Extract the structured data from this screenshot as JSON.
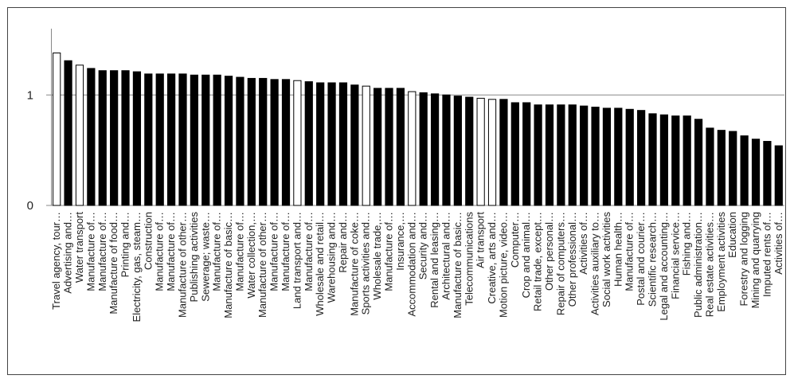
{
  "chart_data": {
    "type": "bar",
    "categories": [
      "Travel agency, tour…",
      "Advertising and…",
      "Water transport",
      "Manufacture of…",
      "Manufacture of…",
      "Manufacture of food…",
      "Printing and…",
      "Electricity, gas, steam…",
      "Construction",
      "Manufacture of…",
      "Manufacture of…",
      "Manufacture of other…",
      "Publishing activities",
      "Sewerage; waste…",
      "Manufacture of…",
      "Manufacture of basic…",
      "Manufacture of…",
      "Water collection,…",
      "Manufacture of other…",
      "Manufacture of…",
      "Manufacture of…",
      "Land transport and…",
      "Manufacture of…",
      "Wholesale and retail…",
      "Warehousing and…",
      "Repair and…",
      "Manufacture of coke…",
      "Sports activities and…",
      "Wholesale trade,…",
      "Manufacture of…",
      "Insurance,…",
      "Accommodation and…",
      "Security and…",
      "Rental and leasing…",
      "Architectural and…",
      "Manufacture of basic…",
      "Telecommunications",
      "Air transport",
      "Creative, arts and…",
      "Motion picture, video…",
      "Computer…",
      "Crop and animal…",
      "Retail trade, except…",
      "Other personal…",
      "Repair of computers…",
      "Other professional…",
      "Activities of…",
      "Activities auxiliary to…",
      "Social work activities",
      "Human health…",
      "Manufacture of…",
      "Postal and courier…",
      "Scientific research…",
      "Legal and accounting…",
      "Financial service…",
      "Fishing and…",
      "Public administration…",
      "Real estate activities…",
      "Employment activities",
      "Education",
      "Forestry and logging",
      "Mining and quarrying",
      "Imputed rents of…",
      "Activities of…"
    ],
    "values": [
      1.38,
      1.31,
      1.27,
      1.24,
      1.22,
      1.22,
      1.22,
      1.21,
      1.19,
      1.19,
      1.19,
      1.19,
      1.18,
      1.18,
      1.18,
      1.17,
      1.16,
      1.15,
      1.15,
      1.14,
      1.14,
      1.13,
      1.12,
      1.11,
      1.11,
      1.11,
      1.09,
      1.08,
      1.06,
      1.06,
      1.06,
      1.03,
      1.02,
      1.01,
      1.0,
      0.99,
      0.98,
      0.97,
      0.96,
      0.96,
      0.93,
      0.93,
      0.91,
      0.91,
      0.91,
      0.91,
      0.9,
      0.89,
      0.88,
      0.88,
      0.87,
      0.86,
      0.83,
      0.82,
      0.81,
      0.81,
      0.78,
      0.7,
      0.68,
      0.67,
      0.63,
      0.6,
      0.58,
      0.54
    ],
    "bar_colors": [
      "#ffffff",
      "#000000",
      "#ffffff",
      "#000000",
      "#000000",
      "#000000",
      "#000000",
      "#000000",
      "#000000",
      "#000000",
      "#000000",
      "#000000",
      "#000000",
      "#000000",
      "#000000",
      "#000000",
      "#000000",
      "#000000",
      "#000000",
      "#000000",
      "#000000",
      "#ffffff",
      "#000000",
      "#000000",
      "#000000",
      "#000000",
      "#000000",
      "#ffffff",
      "#000000",
      "#000000",
      "#000000",
      "#ffffff",
      "#000000",
      "#000000",
      "#000000",
      "#000000",
      "#000000",
      "#ffffff",
      "#ffffff",
      "#000000",
      "#000000",
      "#000000",
      "#000000",
      "#000000",
      "#000000",
      "#000000",
      "#000000",
      "#000000",
      "#000000",
      "#000000",
      "#000000",
      "#000000",
      "#000000",
      "#000000",
      "#000000",
      "#000000",
      "#000000",
      "#000000",
      "#000000",
      "#000000",
      "#000000",
      "#000000",
      "#000000",
      "#000000"
    ],
    "ylim": [
      0,
      1.6
    ],
    "yticks": [
      0,
      1
    ],
    "grid": true
  }
}
